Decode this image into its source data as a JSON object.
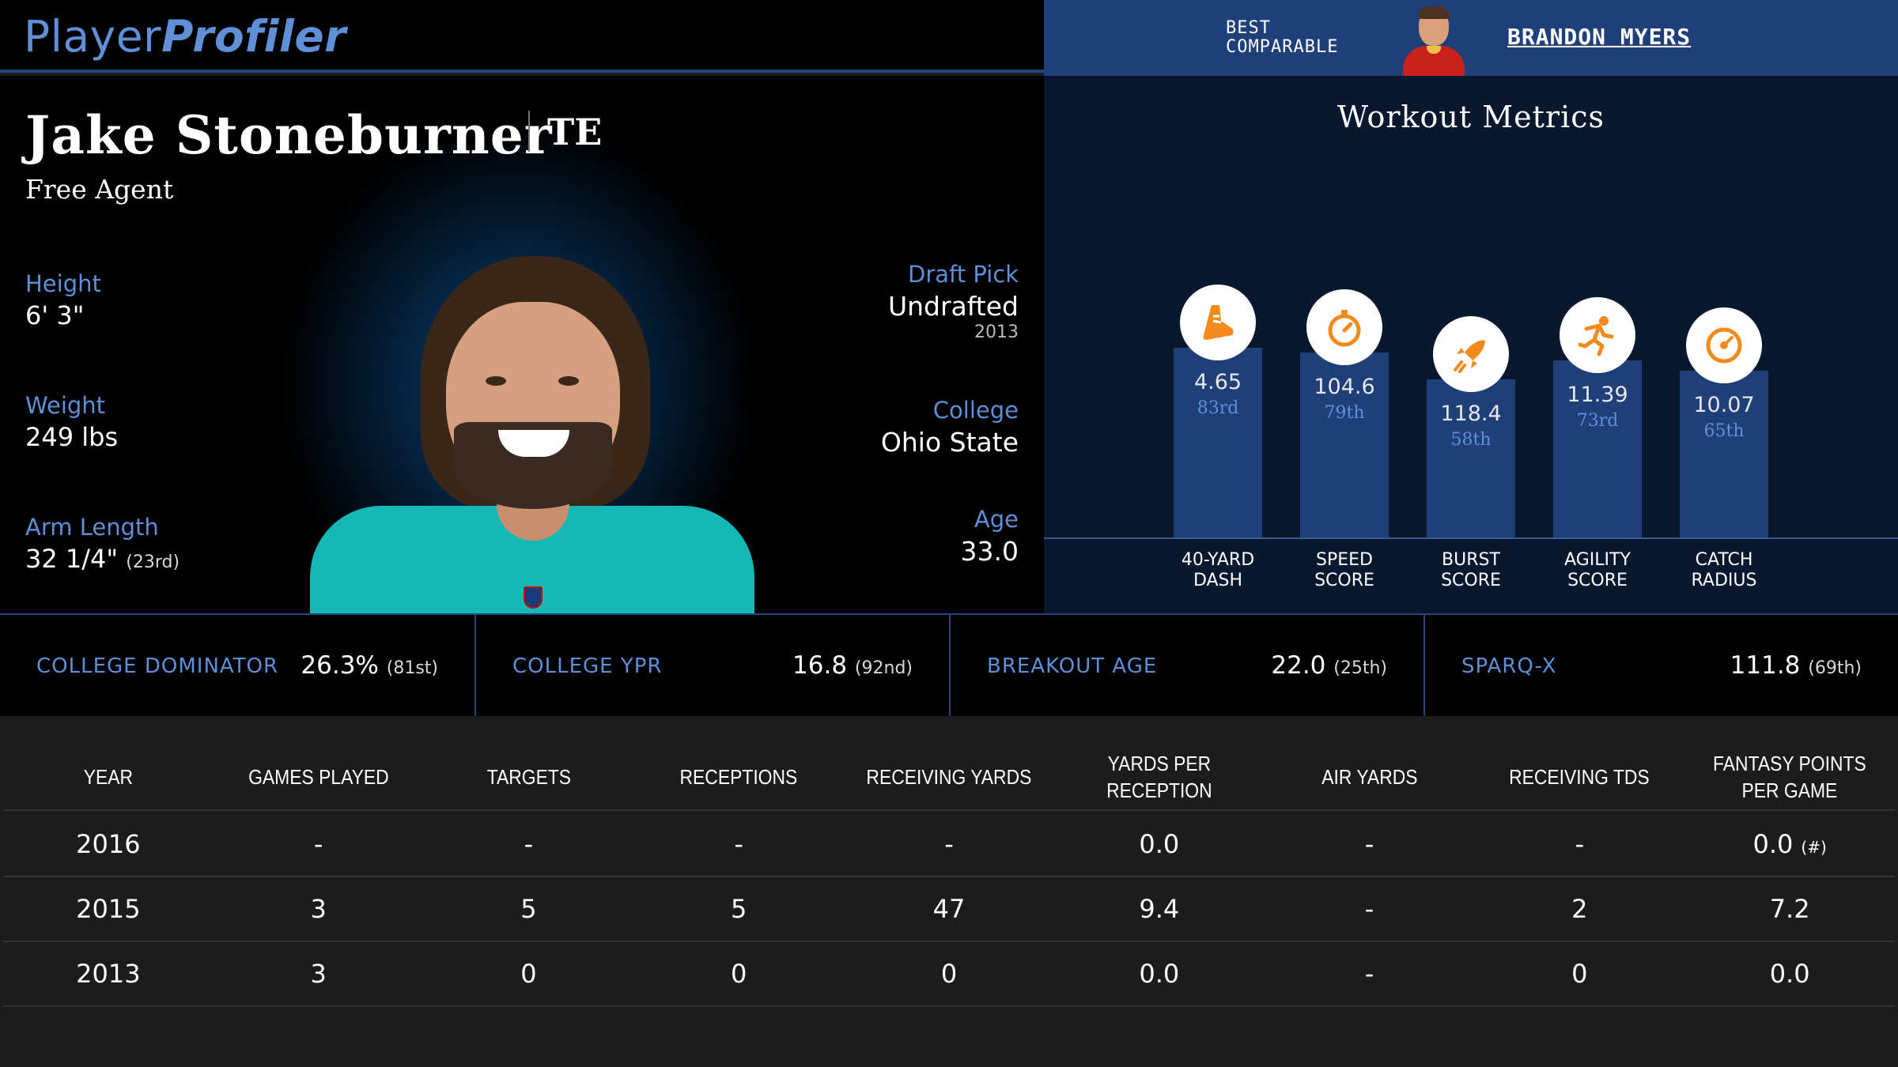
{
  "brand": {
    "part1": "Player",
    "part2": "Profiler"
  },
  "comparable": {
    "label_line1": "BEST",
    "label_line2": "COMPARABLE",
    "name": "BRANDON MYERS"
  },
  "player": {
    "name": "Jake Stoneburner",
    "position": "TE",
    "team": "Free Agent",
    "height": {
      "label": "Height",
      "value": "6' 3\""
    },
    "weight": {
      "label": "Weight",
      "value": "249 lbs"
    },
    "arm_length": {
      "label": "Arm Length",
      "value": "32 1/4\"",
      "rank": "(23rd)"
    },
    "draft_pick": {
      "label": "Draft Pick",
      "value": "Undrafted",
      "year": "2013"
    },
    "college": {
      "label": "College",
      "value": "Ohio State"
    },
    "age": {
      "label": "Age",
      "value": "33.0"
    }
  },
  "workout": {
    "title": "Workout Metrics",
    "metrics": [
      {
        "label": "40-YARD DASH",
        "value": "4.65",
        "percentile": "83rd",
        "pct": 83,
        "icon": "shoe-icon"
      },
      {
        "label": "SPEED SCORE",
        "value": "104.6",
        "percentile": "79th",
        "pct": 79,
        "icon": "stopwatch-icon"
      },
      {
        "label": "BURST SCORE",
        "value": "118.4",
        "percentile": "58th",
        "pct": 58,
        "icon": "rocket-icon"
      },
      {
        "label": "AGILITY SCORE",
        "value": "11.39",
        "percentile": "73rd",
        "pct": 73,
        "icon": "runner-icon"
      },
      {
        "label": "CATCH RADIUS",
        "value": "10.07",
        "percentile": "65th",
        "pct": 65,
        "icon": "target-icon"
      }
    ]
  },
  "stats": [
    {
      "label": "COLLEGE DOMINATOR",
      "value": "26.3%",
      "rank": "(81st)"
    },
    {
      "label": "COLLEGE YPR",
      "value": "16.8",
      "rank": "(92nd)"
    },
    {
      "label": "BREAKOUT AGE",
      "value": "22.0",
      "rank": "(25th)"
    },
    {
      "label": "SPARQ-X",
      "value": "111.8",
      "rank": "(69th)"
    }
  ],
  "table": {
    "headers": [
      "YEAR",
      "GAMES PLAYED",
      "TARGETS",
      "RECEPTIONS",
      "RECEIVING YARDS",
      "YARDS PER RECEPTION",
      "AIR YARDS",
      "RECEIVING TDS",
      "FANTASY POINTS PER GAME"
    ],
    "rows": [
      [
        "2016",
        "-",
        "-",
        "-",
        "-",
        "0.0",
        "-",
        "-",
        "0.0"
      ],
      [
        "2015",
        "3",
        "5",
        "5",
        "47",
        "9.4",
        "-",
        "2",
        "7.2"
      ],
      [
        "2013",
        "3",
        "0",
        "0",
        "0",
        "0.0",
        "-",
        "0",
        "0.0"
      ]
    ],
    "note": "(#)"
  },
  "colors": {
    "accent": "#5f8fd6",
    "bar": "#1f3f78",
    "header_blue": "#24467f",
    "icon_orange": "#f28a1e",
    "jersey": "#16b8b5"
  }
}
